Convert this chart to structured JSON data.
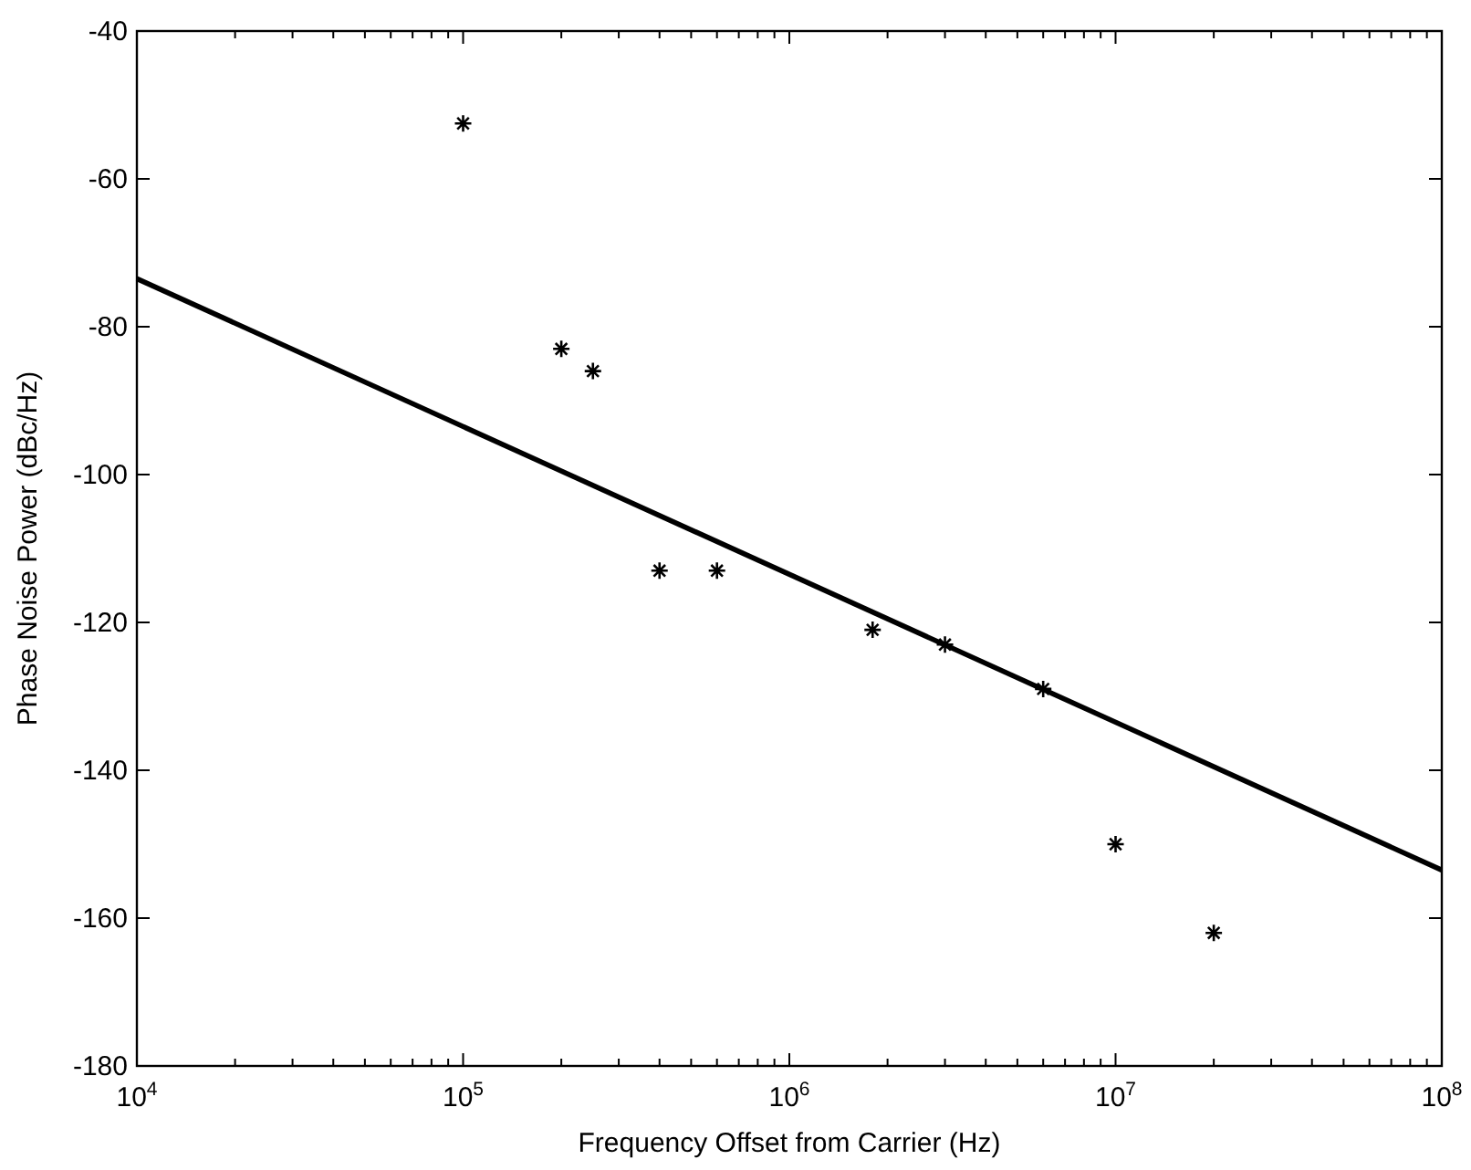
{
  "chart_data": {
    "type": "scatter",
    "xlabel": "Frequency Offset from Carrier (Hz)",
    "ylabel": "Phase Noise Power (dBc/Hz)",
    "log": "x",
    "xlim": [
      10000,
      100000000
    ],
    "xticks": [
      {
        "value": 10000,
        "label": "10$^{4}$"
      },
      {
        "value": 100000,
        "label": "10$^{5}$"
      },
      {
        "value": 1000000,
        "label": "10$^{6}$"
      },
      {
        "value": 10000000,
        "label": "10$^{7}$"
      },
      {
        "value": 100000000,
        "label": "10$^{8}$"
      }
    ],
    "ylim": [
      -180,
      -40
    ],
    "yticks": [
      -180,
      -160,
      -140,
      -120,
      -100,
      -80,
      -60,
      -40
    ],
    "grid": false,
    "series": [
      {
        "color": "#000000",
        "marker": "cross",
        "x": [
          100000,
          200000,
          250000,
          400000,
          600000,
          1800000,
          3000000,
          6000000,
          10000000,
          20000000
        ],
        "values": [
          -52.5,
          -83,
          -86,
          -113,
          -113,
          -121,
          -123,
          -129,
          -150,
          -162
        ]
      },
      {
        "type": "line",
        "color": "#000000",
        "marker": "none",
        "line_style": "solid",
        "x": [
          10000,
          100000000
        ],
        "values": [
          -73.5,
          -153.5
        ]
      }
    ]
  }
}
